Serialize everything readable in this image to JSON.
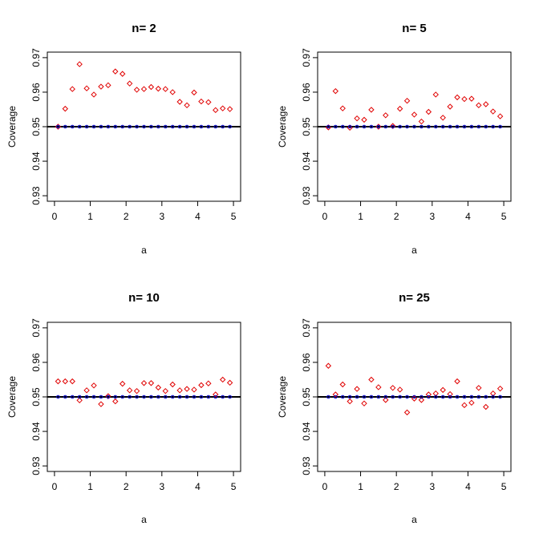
{
  "chart_data": [
    {
      "type": "scatter",
      "title": "n= 2",
      "xlabel": "a",
      "ylabel": "Coverage",
      "xlim": [
        0,
        5
      ],
      "ylim": [
        0.93,
        0.97
      ],
      "xticks": [
        0,
        1,
        2,
        3,
        4,
        5
      ],
      "yticks": [
        0.93,
        0.94,
        0.95,
        0.96,
        0.97
      ],
      "reference_line": 0.95,
      "series": [
        {
          "color": "#e00000",
          "marker": "open-diamond",
          "x": [
            0.1,
            0.3,
            0.5,
            0.7,
            0.9,
            1.1,
            1.3,
            1.5,
            1.7,
            1.9,
            2.1,
            2.3,
            2.5,
            2.7,
            2.9,
            3.1,
            3.3,
            3.5,
            3.7,
            3.9,
            4.1,
            4.3,
            4.5,
            4.7,
            4.9
          ],
          "y": [
            0.95,
            0.9552,
            0.9609,
            0.9681,
            0.9611,
            0.9593,
            0.9616,
            0.962,
            0.966,
            0.9653,
            0.9625,
            0.9607,
            0.9609,
            0.9615,
            0.961,
            0.9609,
            0.96,
            0.9572,
            0.9562,
            0.9599,
            0.9573,
            0.9571,
            0.9548,
            0.9553,
            0.9551
          ]
        },
        {
          "color": "#0000cc",
          "marker": "open-circle",
          "x": [
            0.1,
            0.3,
            0.5,
            0.7,
            0.9,
            1.1,
            1.3,
            1.5,
            1.7,
            1.9,
            2.1,
            2.3,
            2.5,
            2.7,
            2.9,
            3.1,
            3.3,
            3.5,
            3.7,
            3.9,
            4.1,
            4.3,
            4.5,
            4.7,
            4.9
          ],
          "y": [
            0.95,
            0.95,
            0.95,
            0.95,
            0.95,
            0.95,
            0.95,
            0.95,
            0.95,
            0.95,
            0.95,
            0.95,
            0.95,
            0.95,
            0.95,
            0.95,
            0.95,
            0.95,
            0.95,
            0.95,
            0.95,
            0.95,
            0.95,
            0.95,
            0.95
          ]
        }
      ]
    },
    {
      "type": "scatter",
      "title": "n= 5",
      "xlabel": "a",
      "ylabel": "Coverage",
      "xlim": [
        0,
        5
      ],
      "ylim": [
        0.93,
        0.97
      ],
      "xticks": [
        0,
        1,
        2,
        3,
        4,
        5
      ],
      "yticks": [
        0.93,
        0.94,
        0.95,
        0.96,
        0.97
      ],
      "reference_line": 0.95,
      "series": [
        {
          "color": "#e00000",
          "marker": "open-diamond",
          "x": [
            0.1,
            0.3,
            0.5,
            0.7,
            0.9,
            1.1,
            1.3,
            1.5,
            1.7,
            1.9,
            2.1,
            2.3,
            2.5,
            2.7,
            2.9,
            3.1,
            3.3,
            3.5,
            3.7,
            3.9,
            4.1,
            4.3,
            4.5,
            4.7,
            4.9
          ],
          "y": [
            0.9498,
            0.9603,
            0.9553,
            0.9497,
            0.9524,
            0.952,
            0.9549,
            0.95,
            0.9533,
            0.9502,
            0.9552,
            0.9575,
            0.9535,
            0.9515,
            0.9543,
            0.9593,
            0.9526,
            0.9558,
            0.9585,
            0.958,
            0.9581,
            0.9562,
            0.9565,
            0.9544,
            0.953
          ]
        },
        {
          "color": "#0000cc",
          "marker": "open-circle",
          "x": [
            0.1,
            0.3,
            0.5,
            0.7,
            0.9,
            1.1,
            1.3,
            1.5,
            1.7,
            1.9,
            2.1,
            2.3,
            2.5,
            2.7,
            2.9,
            3.1,
            3.3,
            3.5,
            3.7,
            3.9,
            4.1,
            4.3,
            4.5,
            4.7,
            4.9
          ],
          "y": [
            0.95,
            0.95,
            0.95,
            0.95,
            0.95,
            0.95,
            0.95,
            0.95,
            0.95,
            0.95,
            0.95,
            0.95,
            0.95,
            0.95,
            0.95,
            0.95,
            0.95,
            0.95,
            0.95,
            0.95,
            0.95,
            0.95,
            0.95,
            0.95,
            0.95
          ]
        }
      ]
    },
    {
      "type": "scatter",
      "title": "n= 10",
      "xlabel": "a",
      "ylabel": "Coverage",
      "xlim": [
        0,
        5
      ],
      "ylim": [
        0.93,
        0.97
      ],
      "xticks": [
        0,
        1,
        2,
        3,
        4,
        5
      ],
      "yticks": [
        0.93,
        0.94,
        0.95,
        0.96,
        0.97
      ],
      "reference_line": 0.95,
      "series": [
        {
          "color": "#e00000",
          "marker": "open-diamond",
          "x": [
            0.1,
            0.3,
            0.5,
            0.7,
            0.9,
            1.1,
            1.3,
            1.5,
            1.7,
            1.9,
            2.1,
            2.3,
            2.5,
            2.7,
            2.9,
            3.1,
            3.3,
            3.5,
            3.7,
            3.9,
            4.1,
            4.3,
            4.5,
            4.7,
            4.9
          ],
          "y": [
            0.9545,
            0.9545,
            0.9545,
            0.949,
            0.9519,
            0.9533,
            0.9479,
            0.9502,
            0.9487,
            0.9538,
            0.9519,
            0.9517,
            0.954,
            0.954,
            0.9527,
            0.9517,
            0.9536,
            0.9519,
            0.9523,
            0.9521,
            0.9534,
            0.9539,
            0.9507,
            0.955,
            0.9541
          ]
        },
        {
          "color": "#0000cc",
          "marker": "open-circle",
          "x": [
            0.1,
            0.3,
            0.5,
            0.7,
            0.9,
            1.1,
            1.3,
            1.5,
            1.7,
            1.9,
            2.1,
            2.3,
            2.5,
            2.7,
            2.9,
            3.1,
            3.3,
            3.5,
            3.7,
            3.9,
            4.1,
            4.3,
            4.5,
            4.7,
            4.9
          ],
          "y": [
            0.95,
            0.95,
            0.95,
            0.95,
            0.95,
            0.95,
            0.95,
            0.95,
            0.95,
            0.95,
            0.95,
            0.95,
            0.95,
            0.95,
            0.95,
            0.95,
            0.95,
            0.95,
            0.95,
            0.95,
            0.95,
            0.95,
            0.95,
            0.95,
            0.95
          ]
        }
      ]
    },
    {
      "type": "scatter",
      "title": "n= 25",
      "xlabel": "a",
      "ylabel": "Coverage",
      "xlim": [
        0,
        5
      ],
      "ylim": [
        0.93,
        0.97
      ],
      "xticks": [
        0,
        1,
        2,
        3,
        4,
        5
      ],
      "yticks": [
        0.93,
        0.94,
        0.95,
        0.96,
        0.97
      ],
      "reference_line": 0.95,
      "series": [
        {
          "color": "#e00000",
          "marker": "open-diamond",
          "x": [
            0.1,
            0.3,
            0.5,
            0.7,
            0.9,
            1.1,
            1.3,
            1.5,
            1.7,
            1.9,
            2.1,
            2.3,
            2.5,
            2.7,
            2.9,
            3.1,
            3.3,
            3.5,
            3.7,
            3.9,
            4.1,
            4.3,
            4.5,
            4.7,
            4.9
          ],
          "y": [
            0.959,
            0.9507,
            0.9536,
            0.9487,
            0.9523,
            0.9481,
            0.955,
            0.9528,
            0.9491,
            0.9526,
            0.9521,
            0.9455,
            0.9495,
            0.9491,
            0.9507,
            0.951,
            0.952,
            0.9508,
            0.9545,
            0.9476,
            0.9483,
            0.9526,
            0.9471,
            0.951,
            0.9524
          ]
        },
        {
          "color": "#0000cc",
          "marker": "open-circle",
          "x": [
            0.1,
            0.3,
            0.5,
            0.7,
            0.9,
            1.1,
            1.3,
            1.5,
            1.7,
            1.9,
            2.1,
            2.3,
            2.5,
            2.7,
            2.9,
            3.1,
            3.3,
            3.5,
            3.7,
            3.9,
            4.1,
            4.3,
            4.5,
            4.7,
            4.9
          ],
          "y": [
            0.95,
            0.95,
            0.95,
            0.95,
            0.95,
            0.95,
            0.95,
            0.95,
            0.95,
            0.95,
            0.95,
            0.95,
            0.95,
            0.95,
            0.95,
            0.95,
            0.95,
            0.95,
            0.95,
            0.95,
            0.95,
            0.95,
            0.95,
            0.95,
            0.95
          ]
        }
      ]
    }
  ]
}
